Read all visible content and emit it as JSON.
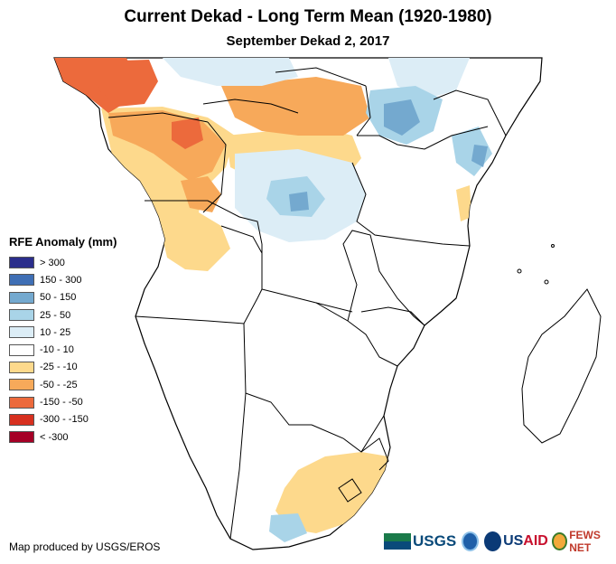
{
  "map": {
    "title": "Current Dekad - Long Term Mean (1920-1980)",
    "subtitle": "September Dekad 2, 2017",
    "region": "Southern Africa",
    "variable": "RFE Anomaly (mm)"
  },
  "legend": {
    "title": "RFE Anomaly (mm)",
    "classes": [
      {
        "label": "> 300",
        "color": "#2b2e8c"
      },
      {
        "label": "150 - 300",
        "color": "#3f6fb5"
      },
      {
        "label": "50 - 150",
        "color": "#74a9cf"
      },
      {
        "label": "25 - 50",
        "color": "#a9d4e8"
      },
      {
        "label": "10 - 25",
        "color": "#dcedf6"
      },
      {
        "label": "-10 - 10",
        "color": "#ffffff"
      },
      {
        "label": "-25 - -10",
        "color": "#fdd98c"
      },
      {
        "label": "-50 - -25",
        "color": "#f7a95a"
      },
      {
        "label": "-150 - -50",
        "color": "#ec6a3c"
      },
      {
        "label": "-300 - -150",
        "color": "#d7301f"
      },
      {
        "label": "< -300",
        "color": "#a50026"
      }
    ]
  },
  "credit": "Map produced by USGS/EROS",
  "logos": {
    "usgs": "USGS",
    "usaid_a": "US",
    "usaid_b": "AID",
    "fews": "FEWS NET",
    "icons": [
      "usgs-logo",
      "noaa-logo",
      "usaid-logo",
      "fews-net-logo"
    ]
  },
  "colors": {
    "border": "#000000",
    "dry": "#fdd98c",
    "drier": "#f7a95a",
    "driest": "#ec6a3c",
    "wet": "#a9d4e8",
    "wetter": "#74a9cf",
    "slightly_wet": "#dcedf6"
  }
}
